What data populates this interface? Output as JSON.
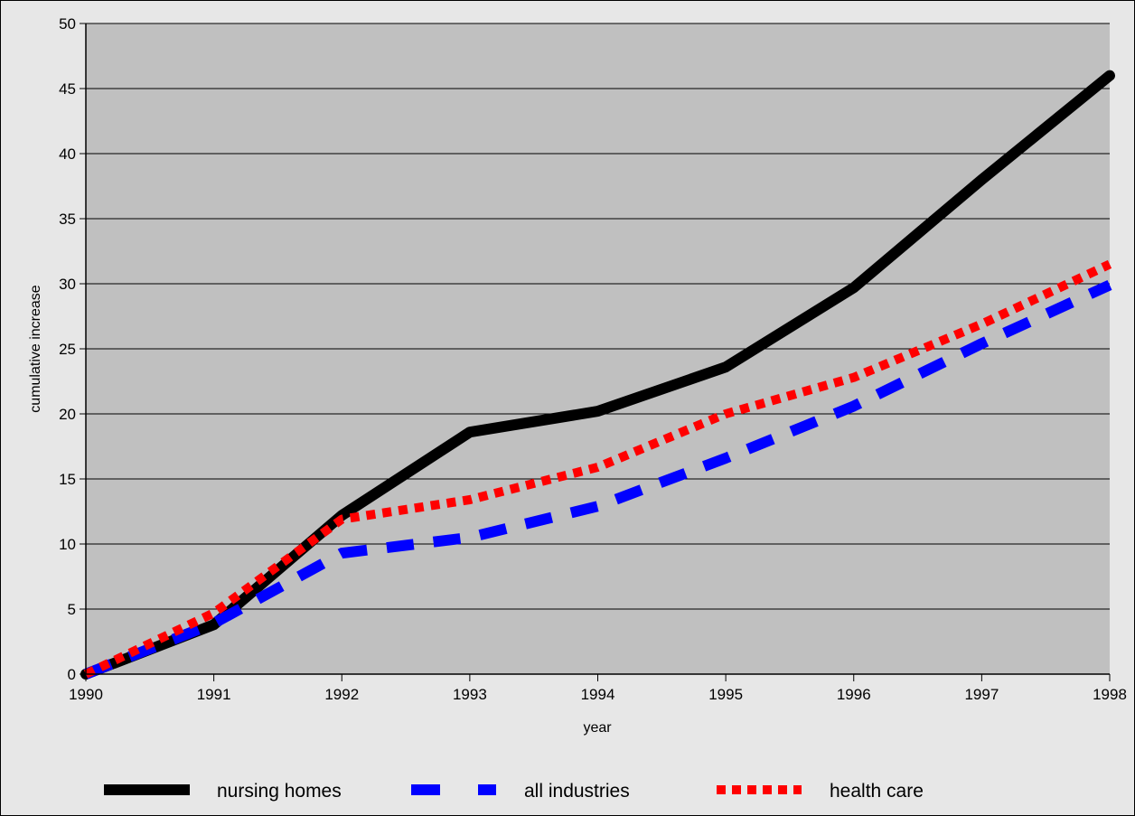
{
  "chart_data": {
    "type": "line",
    "title": "",
    "xlabel": "year",
    "ylabel": "cumulative increase",
    "x": [
      "1990",
      "1991",
      "1992",
      "1993",
      "1994",
      "1995",
      "1996",
      "1997",
      "1998"
    ],
    "y_ticks": [
      "0",
      "5",
      "10",
      "15",
      "20",
      "25",
      "30",
      "35",
      "40",
      "45",
      "50"
    ],
    "ylim": [
      0,
      50
    ],
    "grid": "horizontal",
    "legend_position": "bottom",
    "series": [
      {
        "name": "nursing homes",
        "values": [
          0,
          3.8,
          12.2,
          18.6,
          20.2,
          23.6,
          29.7,
          38.0,
          46.0
        ],
        "color": "#000000",
        "style": "solid"
      },
      {
        "name": "all industries",
        "values": [
          0,
          3.9,
          9.3,
          10.5,
          12.9,
          16.6,
          20.6,
          25.4,
          29.9
        ],
        "color": "#0000ff",
        "style": "dashed"
      },
      {
        "name": "health care",
        "values": [
          0,
          4.7,
          11.9,
          13.4,
          15.9,
          20.0,
          22.8,
          26.9,
          31.5
        ],
        "color": "#ff0000",
        "style": "dotted"
      }
    ]
  },
  "colors": {
    "page_background": "#e7e7e7",
    "plot_background": "#c0c0c0",
    "gridline": "#000000",
    "frame": "#000000"
  }
}
